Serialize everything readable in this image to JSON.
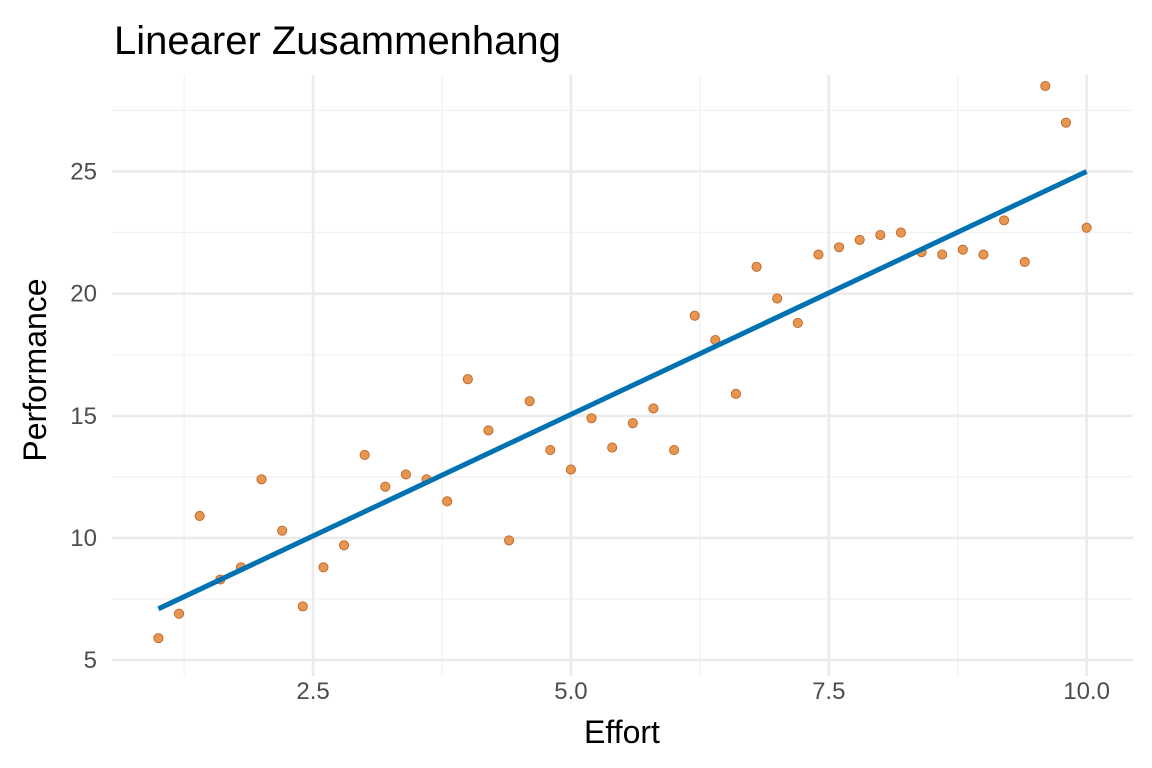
{
  "chart_data": {
    "type": "scatter",
    "title": "Linearer Zusammenhang",
    "xlabel": "Effort",
    "ylabel": "Performance",
    "xlim": [
      0.55,
      10.45
    ],
    "ylim": [
      4.35,
      28.95
    ],
    "x_ticks": [
      2.5,
      5.0,
      7.5,
      10.0
    ],
    "x_tick_labels": [
      "2.5",
      "5.0",
      "7.5",
      "10.0"
    ],
    "y_ticks": [
      5,
      10,
      15,
      20,
      25
    ],
    "y_tick_labels": [
      "5",
      "10",
      "15",
      "20",
      "25"
    ],
    "grid": true,
    "legend": "none",
    "points_color": "#e6964f",
    "points_border": "#c0662a",
    "line_color": "#0072b2",
    "points": [
      {
        "x": 1.0,
        "y": 5.9
      },
      {
        "x": 1.2,
        "y": 6.9
      },
      {
        "x": 1.4,
        "y": 10.9
      },
      {
        "x": 1.6,
        "y": 8.3
      },
      {
        "x": 1.8,
        "y": 8.8
      },
      {
        "x": 2.0,
        "y": 12.4
      },
      {
        "x": 2.2,
        "y": 10.3
      },
      {
        "x": 2.4,
        "y": 7.2
      },
      {
        "x": 2.6,
        "y": 8.8
      },
      {
        "x": 2.8,
        "y": 9.7
      },
      {
        "x": 3.0,
        "y": 13.4
      },
      {
        "x": 3.2,
        "y": 12.1
      },
      {
        "x": 3.4,
        "y": 12.6
      },
      {
        "x": 3.6,
        "y": 12.4
      },
      {
        "x": 3.8,
        "y": 11.5
      },
      {
        "x": 4.0,
        "y": 16.5
      },
      {
        "x": 4.2,
        "y": 14.4
      },
      {
        "x": 4.4,
        "y": 9.9
      },
      {
        "x": 4.6,
        "y": 15.6
      },
      {
        "x": 4.8,
        "y": 13.6
      },
      {
        "x": 5.0,
        "y": 12.8
      },
      {
        "x": 5.2,
        "y": 14.9
      },
      {
        "x": 5.4,
        "y": 13.7
      },
      {
        "x": 5.6,
        "y": 14.7
      },
      {
        "x": 5.8,
        "y": 15.3
      },
      {
        "x": 6.0,
        "y": 13.6
      },
      {
        "x": 6.2,
        "y": 19.1
      },
      {
        "x": 6.4,
        "y": 18.1
      },
      {
        "x": 6.6,
        "y": 15.9
      },
      {
        "x": 6.8,
        "y": 21.1
      },
      {
        "x": 7.0,
        "y": 19.8
      },
      {
        "x": 7.2,
        "y": 18.8
      },
      {
        "x": 7.4,
        "y": 21.6
      },
      {
        "x": 7.6,
        "y": 21.9
      },
      {
        "x": 7.8,
        "y": 22.2
      },
      {
        "x": 8.0,
        "y": 22.4
      },
      {
        "x": 8.2,
        "y": 22.5
      },
      {
        "x": 8.4,
        "y": 21.7
      },
      {
        "x": 8.6,
        "y": 21.6
      },
      {
        "x": 8.8,
        "y": 21.8
      },
      {
        "x": 9.0,
        "y": 21.6
      },
      {
        "x": 9.2,
        "y": 23.0
      },
      {
        "x": 9.4,
        "y": 21.3
      },
      {
        "x": 9.6,
        "y": 28.5
      },
      {
        "x": 9.8,
        "y": 27.0
      },
      {
        "x": 10.0,
        "y": 22.7
      }
    ],
    "fit_line": {
      "x": [
        1.0,
        10.0
      ],
      "y": [
        7.1,
        25.0
      ]
    }
  }
}
